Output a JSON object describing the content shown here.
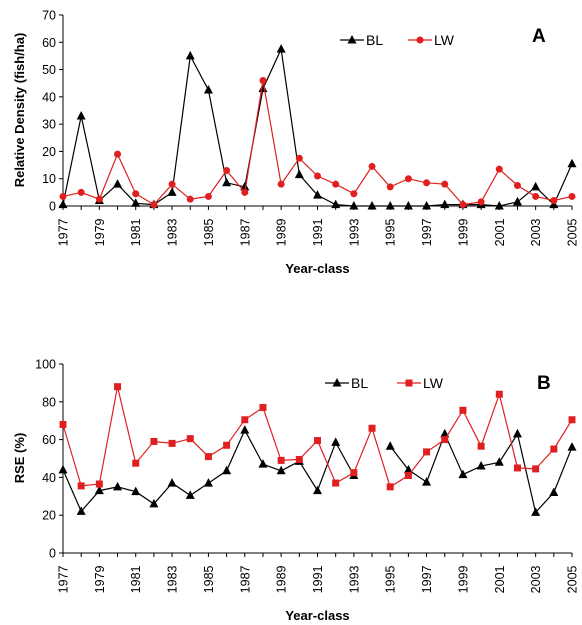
{
  "colors": {
    "BL": "#000000",
    "LW": "#e02020"
  },
  "chart_data": [
    {
      "type": "line",
      "panel_label": "A",
      "title": "",
      "xlabel": "Year-class",
      "ylabel": "Relative Density (fish/ha)",
      "ylim": [
        0,
        70
      ],
      "yticks": [
        0,
        10,
        20,
        30,
        40,
        50,
        60,
        70
      ],
      "xlim": [
        1977,
        2005
      ],
      "xticks": [
        1977,
        1979,
        1981,
        1983,
        1985,
        1987,
        1989,
        1991,
        1993,
        1995,
        1997,
        1999,
        2001,
        2003,
        2005
      ],
      "legend_position": "top-right",
      "grid": false,
      "x": [
        1977,
        1978,
        1979,
        1980,
        1981,
        1982,
        1983,
        1984,
        1985,
        1986,
        1987,
        1988,
        1989,
        1990,
        1991,
        1992,
        1993,
        1994,
        1995,
        1996,
        1997,
        1998,
        1999,
        2000,
        2001,
        2002,
        2003,
        2004,
        2005
      ],
      "series": [
        {
          "name": "BL",
          "marker": "triangle",
          "color_key": "BL",
          "values": [
            0.5,
            33,
            2,
            8,
            1,
            0.5,
            5,
            55,
            42.5,
            8.5,
            7,
            43,
            57.5,
            11.5,
            4,
            0.5,
            0,
            0,
            0,
            0,
            0,
            0.5,
            0.5,
            0.5,
            0,
            1.5,
            7,
            0.5,
            15.5
          ]
        },
        {
          "name": "LW",
          "marker": "circle",
          "color_key": "LW",
          "values": [
            3.5,
            5,
            2.5,
            19,
            4.5,
            0.5,
            8,
            2.5,
            3.5,
            13,
            5,
            46,
            8,
            17.5,
            11,
            8,
            4.5,
            14.5,
            7,
            10,
            8.5,
            8,
            0.5,
            1.5,
            13.5,
            7.5,
            3.5,
            2,
            3.5
          ]
        }
      ]
    },
    {
      "type": "line",
      "panel_label": "B",
      "title": "",
      "xlabel": "Year-class",
      "ylabel": "RSE (%)",
      "ylim": [
        0,
        100
      ],
      "yticks": [
        0,
        20,
        40,
        60,
        80,
        100
      ],
      "xlim": [
        1977,
        2005
      ],
      "xticks": [
        1977,
        1979,
        1981,
        1983,
        1985,
        1987,
        1989,
        1991,
        1993,
        1995,
        1997,
        1999,
        2001,
        2003,
        2005
      ],
      "legend_position": "top-right",
      "grid": false,
      "x": [
        1977,
        1978,
        1979,
        1980,
        1981,
        1982,
        1983,
        1984,
        1985,
        1986,
        1987,
        1988,
        1989,
        1990,
        1991,
        1992,
        1993,
        1994,
        1995,
        1996,
        1997,
        1998,
        1999,
        2000,
        2001,
        2002,
        2003,
        2004,
        2005
      ],
      "series": [
        {
          "name": "BL",
          "marker": "triangle",
          "color_key": "BL",
          "values": [
            44,
            22,
            33,
            35,
            32.5,
            26,
            37,
            30.5,
            37,
            43.5,
            65,
            47,
            43.5,
            48.5,
            33,
            58.5,
            41,
            null,
            56.5,
            44,
            37.5,
            63,
            41.5,
            46,
            48,
            63,
            21.5,
            32,
            56
          ]
        },
        {
          "name": "LW",
          "marker": "square",
          "color_key": "LW",
          "values": [
            68,
            35.5,
            36.5,
            88,
            47.5,
            59,
            58,
            60.5,
            51,
            57,
            70.5,
            77,
            49,
            49.5,
            59.5,
            37,
            42.5,
            66,
            35,
            41,
            53.5,
            60,
            75.5,
            56.5,
            84,
            45,
            44.5,
            55,
            70.5
          ]
        }
      ]
    }
  ]
}
